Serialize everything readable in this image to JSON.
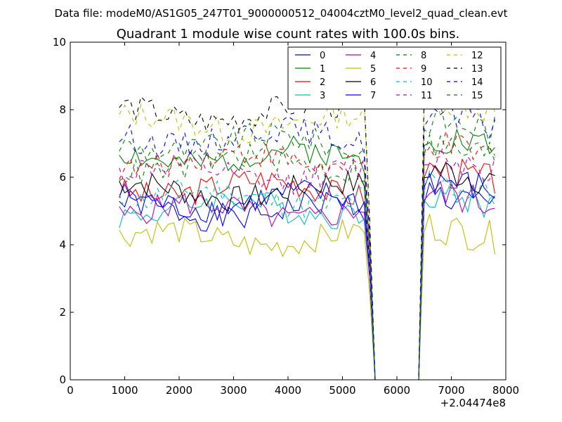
{
  "figure": {
    "suptitle": "Data file: modeM0/AS1G05_247T01_9000000512_04004cztM0_level2_quad_clean.evt"
  },
  "chart_data": {
    "type": "line",
    "title": "Quadrant 1 module wise count rates with 100.0s bins.",
    "xlabel": "",
    "ylabel": "",
    "x_offset_label": "+2.04474e8",
    "xlim": [
      0,
      8000
    ],
    "ylim": [
      0,
      10
    ],
    "xticks": [
      0,
      1000,
      2000,
      3000,
      4000,
      5000,
      6000,
      7000,
      8000
    ],
    "xtick_labels": [
      "0",
      "1000",
      "2000",
      "3000",
      "4000",
      "5000",
      "6000",
      "7000",
      "8000"
    ],
    "yticks": [
      0,
      2,
      4,
      6,
      8,
      10
    ],
    "ytick_labels": [
      "0",
      "2",
      "4",
      "6",
      "8",
      "10"
    ],
    "grid": false,
    "legend_position": "top-right",
    "legend_columns": 4,
    "x": {
      "start": 900,
      "step": 100,
      "count": 70,
      "gap_from": 5600,
      "gap_to": 6400
    },
    "series": [
      {
        "name": "0",
        "color": "#0000ff",
        "dash": "solid",
        "base": 5.0,
        "post": 5.5
      },
      {
        "name": "1",
        "color": "#008000",
        "dash": "solid",
        "base": 6.6,
        "post": 7.3
      },
      {
        "name": "2",
        "color": "#ff0000",
        "dash": "solid",
        "base": 5.7,
        "post": 6.3
      },
      {
        "name": "3",
        "color": "#00bfbf",
        "dash": "solid",
        "base": 5.1,
        "post": 5.6
      },
      {
        "name": "4",
        "color": "#bf00bf",
        "dash": "solid",
        "base": 5.0,
        "post": 5.6
      },
      {
        "name": "5",
        "color": "#bfbf00",
        "dash": "solid",
        "base": 4.2,
        "post": 4.6
      },
      {
        "name": "6",
        "color": "#000000",
        "dash": "solid",
        "base": 5.6,
        "post": 6.3
      },
      {
        "name": "7",
        "color": "#0000ff",
        "dash": "solid",
        "base": 5.3,
        "post": 6.0
      },
      {
        "name": "8",
        "color": "#008000",
        "dash": "dashed",
        "base": 7.0,
        "post": 7.8
      },
      {
        "name": "9",
        "color": "#ff0000",
        "dash": "dashed",
        "base": 6.5,
        "post": 7.0
      },
      {
        "name": "10",
        "color": "#00bfbf",
        "dash": "dashed",
        "base": 5.4,
        "post": 5.9
      },
      {
        "name": "11",
        "color": "#bf00bf",
        "dash": "dashed",
        "base": 6.1,
        "post": 6.7
      },
      {
        "name": "12",
        "color": "#bfbf00",
        "dash": "dashed",
        "base": 7.6,
        "post": 8.4
      },
      {
        "name": "13",
        "color": "#000000",
        "dash": "dashed",
        "base": 7.9,
        "post": 8.9
      },
      {
        "name": "14",
        "color": "#0000ff",
        "dash": "dashed",
        "base": 7.2,
        "post": 7.9
      },
      {
        "name": "15",
        "color": "#008000",
        "dash": "dashed",
        "base": 6.4,
        "post": 7.0
      }
    ]
  }
}
